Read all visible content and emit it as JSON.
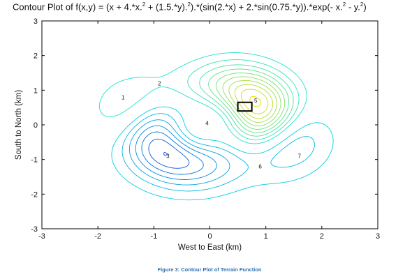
{
  "chart_data": {
    "type": "contour",
    "title_parts": [
      {
        "t": "Contour Plot of f(x,y) = (x + 4.*x."
      },
      {
        "t": "2",
        "sup": true
      },
      {
        "t": " + (1.5.*y)."
      },
      {
        "t": "2",
        "sup": true
      },
      {
        "t": ").*(sin(2.*x) + 2.*sin(0.75.*y)).*exp(- x."
      },
      {
        "t": "2",
        "sup": true
      },
      {
        "t": " - y."
      },
      {
        "t": "2",
        "sup": true
      },
      {
        "t": ")"
      }
    ],
    "xlabel": "West to East (km)",
    "ylabel": "South to North (km)",
    "xlim": [
      -3,
      3
    ],
    "ylim": [
      -3,
      3
    ],
    "xticks": [
      "-3",
      "-2",
      "-1",
      "0",
      "1",
      "2",
      "3"
    ],
    "yticks": [
      "-3",
      "-2",
      "-1",
      "0",
      "1",
      "2",
      "3"
    ],
    "grid": false,
    "colormap": [
      "#00ffff",
      "#00e0a0",
      "#60ff60",
      "#ffff00",
      "#ff9900",
      "#dd0000",
      "#880000",
      "#0000aa",
      "#000066"
    ],
    "point_labels": [
      {
        "text": "1",
        "x": -1.55,
        "y": 0.8
      },
      {
        "text": "2",
        "x": -0.9,
        "y": 1.2
      },
      {
        "text": "3",
        "x": -0.75,
        "y": -0.9
      },
      {
        "text": "4",
        "x": -0.05,
        "y": 0.05
      },
      {
        "text": "5",
        "x": 0.82,
        "y": 0.7
      },
      {
        "text": "6",
        "x": 0.9,
        "y": -1.2
      },
      {
        "text": "7",
        "x": 1.6,
        "y": -0.9
      }
    ],
    "marked_cell": {
      "x": [
        0.5,
        0.75
      ],
      "y": [
        0.4,
        0.65
      ]
    }
  },
  "caption": "Figure 3: Contour Plot of Terrain Function"
}
